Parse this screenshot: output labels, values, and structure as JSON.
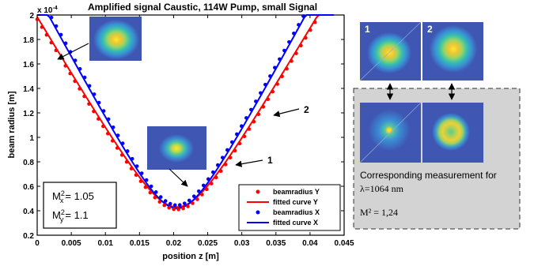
{
  "chart_data": {
    "type": "scatter",
    "title": "Amplified signal Caustic, 114W Pump, small Signal",
    "xlabel": "position z [m]",
    "ylabel": "beam radius [m]",
    "y_multiplier": "x 10",
    "y_exponent": "-4",
    "xlim": [
      0,
      0.045
    ],
    "ylim": [
      0.2,
      2.0
    ],
    "xticks": [
      "0",
      "0.005",
      "0.01",
      "0.015",
      "0.02",
      "0.025",
      "0.03",
      "0.035",
      "0.04",
      "0.045"
    ],
    "yticks": [
      "0.2",
      "0.4",
      "0.6",
      "0.8",
      "1",
      "1.2",
      "1.4",
      "1.6",
      "1.8",
      "2"
    ],
    "grid": false,
    "legend_position": "bottom-right",
    "fits": [
      {
        "name": "fitted curve Y",
        "color": "#ff0000",
        "w0": 0.43,
        "z0": 0.0205,
        "zR": 0.00455,
        "x": [
          0,
          0.0435
        ]
      },
      {
        "name": "fitted curve X",
        "color": "#0000ff",
        "w0": 0.42,
        "z0": 0.0205,
        "zR": 0.00405,
        "x": [
          0,
          0.0435
        ]
      }
    ],
    "series": [
      {
        "name": "beamradius Y",
        "color": "#ff0000",
        "model": 0,
        "x_start": 0,
        "x_end": 0.0435,
        "count": 64
      },
      {
        "name": "beamradius X",
        "color": "#0000ff",
        "model": 1,
        "x_start": 0,
        "x_end": 0.0425,
        "count": 62
      }
    ],
    "annotations": [
      {
        "text": "1",
        "x": 0.037,
        "y": 1.02
      },
      {
        "text": "2",
        "x": 0.0425,
        "y": 1.37
      }
    ],
    "m2_box": {
      "mx_value": "= 1.05",
      "my_value": "= 1.1"
    }
  },
  "side_panel": {
    "label_1": "1",
    "label_2": "2",
    "text_line1": "Corresponding measurement for",
    "text_line2": "λ=1064 nm",
    "text_line3": "M² = 1,24"
  },
  "colors": {
    "panel_bg": "#d3d3d3",
    "beam_bg": "#3f57b3",
    "beam_core": "#f8f020"
  }
}
